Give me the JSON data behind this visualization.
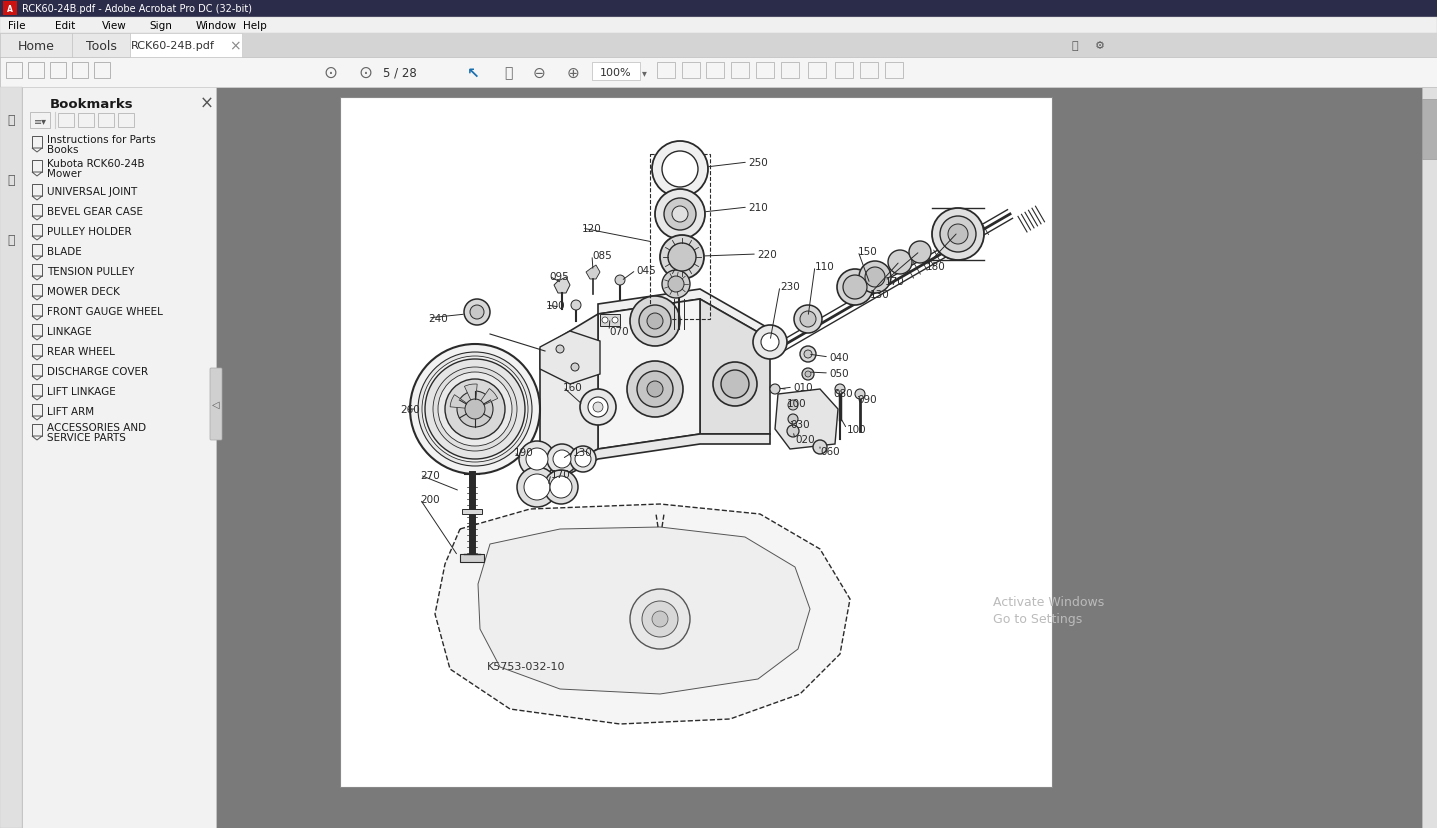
{
  "title_bar": "RCK60-24B.pdf - Adobe Acrobat Pro DC (32-bit)",
  "tab_text": "RCK60-24B.pdf",
  "page_info": "5 / 28",
  "zoom_level": "100%",
  "bookmark_title": "Bookmarks",
  "bookmarks": [
    "Instructions for Parts\nBooks",
    "Kubota RCK60-24B\nMower",
    "UNIVERSAL JOINT",
    "BEVEL GEAR CASE",
    "PULLEY HOLDER",
    "BLADE",
    "TENSION PULLEY",
    "MOWER DECK",
    "FRONT GAUGE WHEEL",
    "LINKAGE",
    "REAR WHEEL",
    "DISCHARGE COVER",
    "LIFT LINKAGE",
    "LIFT ARM",
    "ACCESSORIES AND\nSERVICE PARTS"
  ],
  "diagram_code": "K5753-032-10",
  "activate_text": "Activate Windows",
  "go_to_settings": "Go to Settings",
  "bg_color": "#808080",
  "titlebar_bg": "#1a1a2e",
  "menu_bg": "#f0f0f0",
  "tab_inactive_bg": "#d4d4d4",
  "tab_active_bg": "#ffffff",
  "toolbar_bg": "#f0f0f0",
  "sidebar_icon_bg": "#e8e8e8",
  "bookmark_panel_bg": "#f5f5f5",
  "page_bg": "#ffffff",
  "content_gray": "#7a7a7a",
  "titlebar_text_color": "#ffffff",
  "menu_text_color": "#000000",
  "tab_text_color": "#333333",
  "bookmark_text_color": "#1a1a1a",
  "diagram_line_color": "#2a2a2a",
  "label_color": "#2a2a2a"
}
